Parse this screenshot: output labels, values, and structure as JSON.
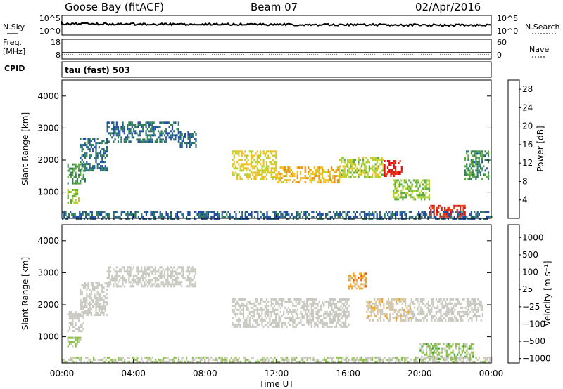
{
  "header": {
    "station": "Goose Bay (fitACF)",
    "beam": "Beam 07",
    "date": "02/Apr/2016"
  },
  "strips": {
    "nsky_label": "N.Sky",
    "nsky_ticks": [
      "10^5",
      "10^0"
    ],
    "nsearch_label": "N.Search",
    "nsearch_ticks": [
      "10^5",
      "10^0"
    ],
    "freq_label": "Freq.",
    "freq_unit": "[MHz]",
    "freq_ticks": [
      "18",
      "8"
    ],
    "nave_label": "Nave",
    "nave_ticks": [
      "60",
      "0"
    ],
    "cpid_label": "CPID",
    "cpid_value": "tau (fast) 503"
  },
  "colors": {
    "power_scale": [
      "#1414e6",
      "#1f4fa0",
      "#2e7d5a",
      "#5aab3c",
      "#b3d12a",
      "#f0c020",
      "#f08a10",
      "#e63a10",
      "#e01010"
    ],
    "velocity_scale": [
      "#e01010",
      "#f04a10",
      "#f5a01a",
      "#d8c8a0",
      "#c8c8c0",
      "#8cc048",
      "#3aa040",
      "#2e7058",
      "#1f3fa0"
    ],
    "background_grey": "#c8c8c0"
  },
  "chart_data": [
    {
      "type": "heatmap",
      "name": "power",
      "ylabel": "Slant Range [km]",
      "yticks": [
        "1000",
        "2000",
        "3000",
        "4000"
      ],
      "ylim": [
        180,
        4500
      ],
      "xlim": [
        0,
        24
      ],
      "xticks": [
        "00:00",
        "04:00",
        "08:00",
        "12:00",
        "16:00",
        "20:00",
        "00:00"
      ],
      "colorbar": {
        "label": "Power [dB]",
        "ticks": [
          "4",
          "8",
          "12",
          "16",
          "20",
          "24",
          "28"
        ],
        "range": [
          0,
          30
        ]
      },
      "regions": [
        {
          "t0": 0.3,
          "t1": 1.3,
          "r0": 1300,
          "r1": 1900,
          "level": 10
        },
        {
          "t0": 0.3,
          "t1": 1.0,
          "r0": 700,
          "r1": 1100,
          "level": 14
        },
        {
          "t0": 1.0,
          "t1": 2.5,
          "r0": 1700,
          "r1": 2700,
          "level": 7
        },
        {
          "t0": 2.5,
          "t1": 6.5,
          "r0": 2600,
          "r1": 3200,
          "level": 7
        },
        {
          "t0": 6.5,
          "t1": 7.5,
          "r0": 2400,
          "r1": 2900,
          "level": 7
        },
        {
          "t0": 9.5,
          "t1": 12.0,
          "r0": 1400,
          "r1": 2300,
          "level": 17
        },
        {
          "t0": 12.0,
          "t1": 15.5,
          "r0": 1300,
          "r1": 1800,
          "level": 19
        },
        {
          "t0": 15.5,
          "t1": 18.0,
          "r0": 1500,
          "r1": 2100,
          "level": 15
        },
        {
          "t0": 18.0,
          "t1": 19.0,
          "r0": 1500,
          "r1": 2000,
          "level": 28
        },
        {
          "t0": 18.5,
          "t1": 20.5,
          "r0": 800,
          "r1": 1400,
          "level": 13
        },
        {
          "t0": 20.5,
          "t1": 22.5,
          "r0": 250,
          "r1": 600,
          "level": 27
        },
        {
          "t0": 22.5,
          "t1": 23.8,
          "r0": 1400,
          "r1": 2300,
          "level": 9
        },
        {
          "t0": 0.0,
          "t1": 24.0,
          "r0": 200,
          "r1": 400,
          "level": 6
        }
      ]
    },
    {
      "type": "heatmap",
      "name": "velocity",
      "ylabel": "Slant Range [km]",
      "yticks": [
        "1000",
        "2000",
        "3000",
        "4000"
      ],
      "ylim": [
        180,
        4500
      ],
      "xlim": [
        0,
        24
      ],
      "xticks": [
        "00:00",
        "04:00",
        "08:00",
        "12:00",
        "16:00",
        "20:00",
        "00:00"
      ],
      "xlabel": "Time UT",
      "colorbar": {
        "label": "Velocity [m s⁻¹]",
        "ticks": [
          "1000",
          "500",
          "100",
          "25",
          "−25",
          "−100",
          "−500",
          "−1000"
        ],
        "range": [
          -1000,
          1000
        ]
      },
      "regions": [
        {
          "t0": 0.3,
          "t1": 1.2,
          "r0": 1200,
          "r1": 1800,
          "level": 0
        },
        {
          "t0": 0.3,
          "t1": 1.0,
          "r0": 700,
          "r1": 1000,
          "level": 150
        },
        {
          "t0": 1.0,
          "t1": 2.5,
          "r0": 1700,
          "r1": 2700,
          "level": 0
        },
        {
          "t0": 2.5,
          "t1": 7.5,
          "r0": 2600,
          "r1": 3200,
          "level": 0
        },
        {
          "t0": 9.5,
          "t1": 16.0,
          "r0": 1300,
          "r1": 2200,
          "level": 0
        },
        {
          "t0": 16.0,
          "t1": 17.0,
          "r0": 2500,
          "r1": 3000,
          "level": -400
        },
        {
          "t0": 17.0,
          "t1": 19.5,
          "r0": 1500,
          "r1": 2200,
          "level": -200
        },
        {
          "t0": 19.5,
          "t1": 23.5,
          "r0": 1500,
          "r1": 2200,
          "level": 0
        },
        {
          "t0": 20.0,
          "t1": 23.0,
          "r0": 300,
          "r1": 800,
          "level": 200
        },
        {
          "t0": 0.0,
          "t1": 24.0,
          "r0": 200,
          "r1": 380,
          "level": 60
        }
      ]
    }
  ]
}
